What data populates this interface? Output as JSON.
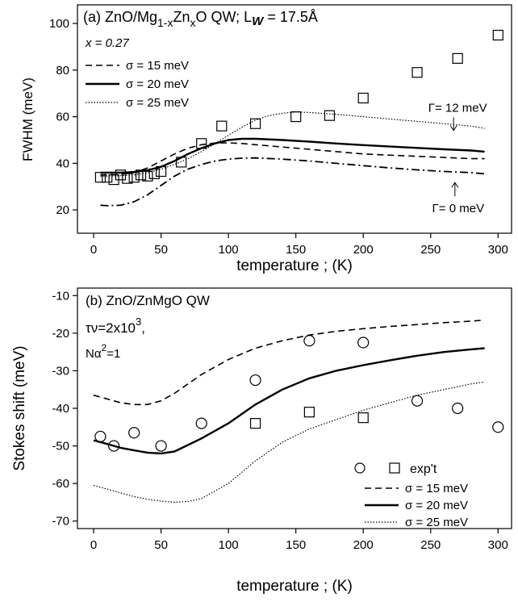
{
  "chart_data": [
    {
      "type": "line",
      "panel_label": "(a)",
      "title": "ZnO/Mg1-xZnxO QW; LW = 17.5Å",
      "title_parts": {
        "a": "(a) ZnO/Mg",
        "b": "1-x",
        "c": "Zn",
        "d": "x",
        "e": "O QW; L",
        "f": "W",
        "g": " = 17.5Å"
      },
      "xlabel": "temperature ; (K)",
      "ylabel": "FWHM (meV)",
      "xlim": [
        -12,
        310
      ],
      "ylim": [
        10,
        108
      ],
      "x_ticks": [
        0,
        50,
        100,
        150,
        200,
        250,
        300
      ],
      "y_ticks": [
        20,
        40,
        60,
        80,
        100
      ],
      "grid": false,
      "legend_header": "x = 0.27",
      "legend_position": "top-left",
      "series": [
        {
          "name": "σ = 15 meV",
          "style": "dashed",
          "x": [
            5,
            10,
            20,
            30,
            40,
            50,
            60,
            70,
            80,
            90,
            100,
            110,
            120,
            140,
            160,
            180,
            200,
            220,
            240,
            260,
            280,
            290
          ],
          "y": [
            35,
            35,
            35.2,
            36,
            38,
            41,
            44,
            46.5,
            48,
            48.7,
            48.8,
            48.5,
            48,
            47,
            46,
            45,
            44,
            43.5,
            43,
            42.5,
            42,
            42
          ]
        },
        {
          "name": "σ = 20 meV",
          "style": "solid",
          "x": [
            5,
            10,
            20,
            30,
            40,
            50,
            60,
            70,
            80,
            90,
            100,
            110,
            120,
            140,
            160,
            180,
            200,
            220,
            240,
            260,
            280,
            290
          ],
          "y": [
            36,
            36,
            36,
            36.3,
            37,
            38.5,
            41,
            44,
            46.5,
            48.5,
            50,
            50.5,
            50.5,
            50,
            49.3,
            48.5,
            47.8,
            47.2,
            46.6,
            46,
            45.5,
            45
          ]
        },
        {
          "name": "σ = 25 meV",
          "style": "dotted",
          "x": [
            5,
            10,
            20,
            30,
            40,
            50,
            60,
            70,
            80,
            90,
            100,
            110,
            120,
            130,
            140,
            150,
            160,
            180,
            200,
            220,
            240,
            260,
            280,
            290
          ],
          "y": [
            34.5,
            34.5,
            34.7,
            35,
            36,
            37.5,
            39.5,
            42,
            45,
            48.5,
            52,
            55.5,
            58.5,
            60.5,
            61.5,
            62,
            61.8,
            61,
            60,
            59,
            58,
            57,
            56,
            55
          ]
        },
        {
          "name": "Γ= 0 meV",
          "style": "dash-dot",
          "x": [
            5,
            10,
            20,
            30,
            40,
            50,
            60,
            70,
            80,
            90,
            100,
            110,
            120,
            140,
            160,
            180,
            200,
            220,
            240,
            260,
            280,
            290
          ],
          "y": [
            22,
            21.8,
            22,
            23.5,
            26.5,
            30.5,
            34.5,
            37.5,
            39.5,
            41,
            41.8,
            42.2,
            42.3,
            41.8,
            41,
            40,
            39,
            38,
            37.2,
            36.5,
            36,
            35.5
          ]
        },
        {
          "name": "exp't",
          "style": "markers-square",
          "x": [
            5,
            10,
            15,
            20,
            25,
            30,
            35,
            40,
            45,
            50,
            65,
            80,
            95,
            120,
            150,
            175,
            200,
            240,
            270,
            300
          ],
          "y": [
            34,
            34,
            33,
            35,
            33.5,
            34,
            35,
            34.5,
            35.5,
            36.5,
            40.5,
            48.5,
            56,
            57,
            60,
            60.5,
            68,
            79,
            85,
            95
          ]
        }
      ],
      "annotations": [
        {
          "text": "Γ= 12 meV",
          "x": 270,
          "y": 60,
          "arrow": "down"
        },
        {
          "text": "Γ= 0 meV",
          "x": 268,
          "y": 21,
          "arrow": "up"
        }
      ]
    },
    {
      "type": "line",
      "panel_label": "(b)",
      "title": "(b) ZnO/ZnMgO QW",
      "params": {
        "a1": "τν=2x10",
        "a2": "3",
        "a3": ",",
        "b1": "Nα",
        "b2": "2",
        "b3": "=1"
      },
      "xlabel": "temperature ; (K)",
      "ylabel": "Stokes shift (meV)",
      "xlim": [
        -12,
        310
      ],
      "ylim": [
        -72,
        -8
      ],
      "x_ticks": [
        0,
        50,
        100,
        150,
        200,
        250,
        300
      ],
      "y_ticks": [
        -70,
        -60,
        -50,
        -40,
        -30,
        -20,
        -10
      ],
      "grid": false,
      "legend_position": "bottom-right",
      "legend_exp": "exp't",
      "series": [
        {
          "name": "σ = 15 meV",
          "style": "dashed",
          "x": [
            0,
            10,
            20,
            30,
            40,
            50,
            60,
            80,
            100,
            120,
            140,
            160,
            180,
            200,
            220,
            240,
            260,
            280,
            290
          ],
          "y": [
            -36.5,
            -37.5,
            -38.5,
            -39,
            -39,
            -38,
            -36,
            -31,
            -27,
            -24,
            -22,
            -20.5,
            -19.5,
            -18.8,
            -18.2,
            -17.7,
            -17.2,
            -16.8,
            -16.5
          ]
        },
        {
          "name": "σ = 20 meV",
          "style": "solid",
          "x": [
            0,
            10,
            20,
            30,
            40,
            50,
            60,
            80,
            100,
            120,
            140,
            160,
            180,
            200,
            220,
            240,
            260,
            280,
            290
          ],
          "y": [
            -48.5,
            -49.5,
            -50.5,
            -51.2,
            -51.8,
            -52,
            -51.5,
            -48,
            -44,
            -39,
            -35,
            -32,
            -30,
            -28.5,
            -27.2,
            -26,
            -25,
            -24.3,
            -24
          ]
        },
        {
          "name": "σ = 25 meV",
          "style": "dotted",
          "x": [
            0,
            10,
            20,
            30,
            40,
            50,
            60,
            70,
            80,
            100,
            120,
            140,
            160,
            180,
            200,
            220,
            240,
            260,
            280,
            290
          ],
          "y": [
            -60.5,
            -61.5,
            -62.5,
            -63.5,
            -64.2,
            -64.7,
            -65,
            -64.8,
            -64,
            -60,
            -54,
            -49,
            -45.5,
            -43,
            -40.5,
            -38.5,
            -36.5,
            -35,
            -33.5,
            -33
          ]
        },
        {
          "name": "exp't (circles)",
          "style": "markers-circle",
          "x": [
            5,
            15,
            30,
            50,
            80,
            120,
            160,
            200,
            240,
            270,
            300
          ],
          "y": [
            -47.5,
            -50,
            -46.5,
            -50,
            -44,
            -32.5,
            -22,
            -22.5,
            -38,
            -40,
            -45
          ]
        },
        {
          "name": "exp't (squares)",
          "style": "markers-square",
          "x": [
            120,
            160,
            200
          ],
          "y": [
            -44,
            -41,
            -42.5
          ]
        }
      ]
    }
  ]
}
